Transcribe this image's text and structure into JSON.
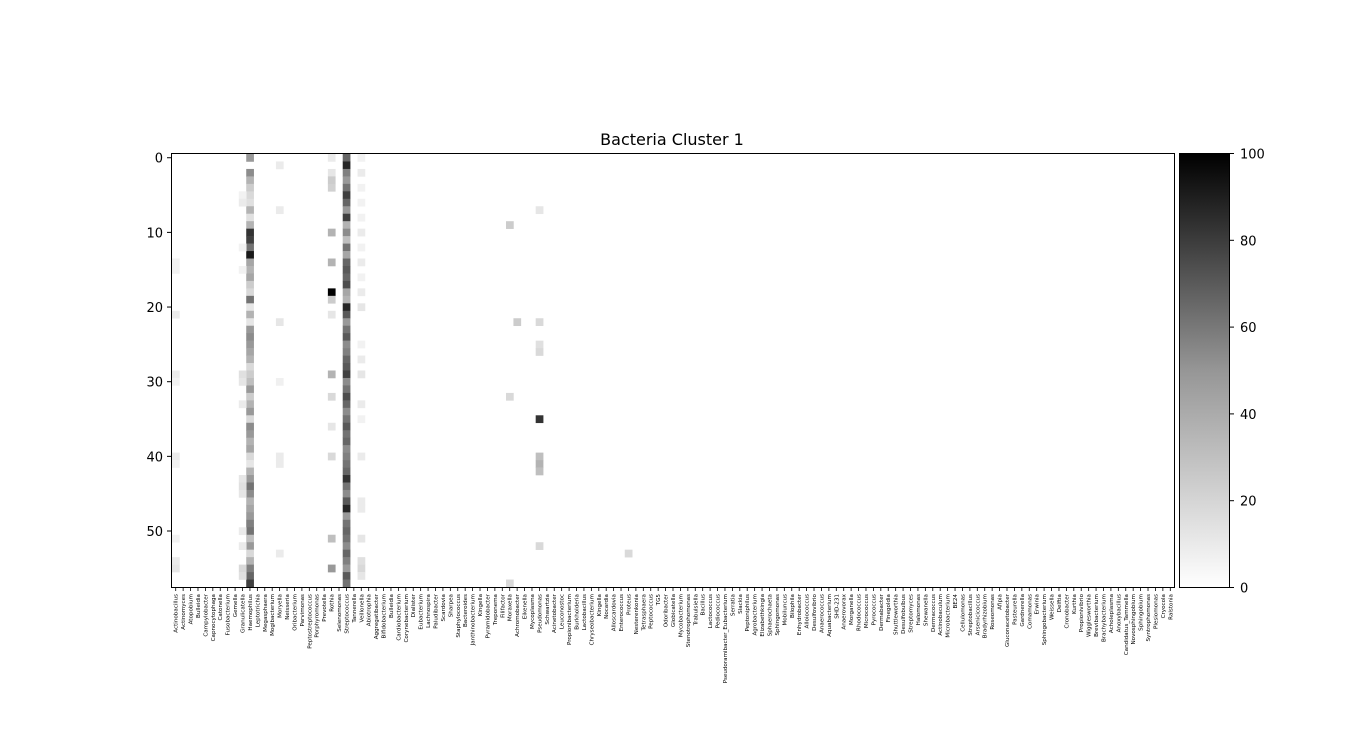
{
  "chart_data": {
    "type": "heatmap",
    "title": "Bacteria Cluster 1",
    "xlabel": "",
    "ylabel": "",
    "n_rows": 58,
    "y_ticks": [
      0,
      10,
      20,
      30,
      40,
      50
    ],
    "colorbar": {
      "min": 0,
      "max": 100,
      "ticks": [
        0,
        20,
        40,
        60,
        80,
        100
      ],
      "cmap": "Greys"
    },
    "categories": [
      "Actinobacillus",
      "Actinomyces",
      "Atopobium",
      "Bulleidia",
      "Campylobacter",
      "Capnocytophaga",
      "Catonella",
      "Fusobacterium",
      "Gemella",
      "Granulicatella",
      "Haemophilus",
      "Leptotrichia",
      "Megasphaera",
      "Mogibacterium",
      "Moryella",
      "Neisseria",
      "Oribacterium",
      "Parvimonas",
      "Peptostreptococcus",
      "Porphyromonas",
      "Prevotella",
      "Rothia",
      "Selenomonas",
      "Streptococcus",
      "Tannerella",
      "Veillonella",
      "Abiotrophia",
      "Aggregatibacter",
      "Bifidobacterium",
      "Bulleidia",
      "Cardiobacterium",
      "Corynebacterium",
      "Dialister",
      "Eubacterium",
      "Lachnospira",
      "Paludibacter",
      "Scardovia",
      "Sharpea",
      "Staphylococcus",
      "Bacteroides",
      "Janthinobacterium",
      "Kingella",
      "Pyramidobacter",
      "Treponema",
      "Filifactor",
      "Moraxella",
      "Achromobacter",
      "Eikenella",
      "Mycoplasma",
      "Pseudomonas",
      "Schwartzia",
      "Acinetobacter",
      "Leuconostoc",
      "Propionibacterium",
      "Burkholderia",
      "Lactobacillus",
      "Chryseobacterium",
      "Kingella",
      "Nocardia",
      "Alloscardovia",
      "Enterococcus",
      "Proteus",
      "Nesterenkonia",
      "Tetrasphaera",
      "Peptococcus",
      "TG5",
      "Odoribacter",
      "Globicatella",
      "Mycobacterium",
      "Stenotrophomonas",
      "Trabulsiella",
      "Bacillus",
      "Lactococcus",
      "Pediococcus",
      "Pseudoramibacter_Eubacterium",
      "Serratia",
      "Slackia",
      "Peptoniphilus",
      "Agrobacterium",
      "Elizabethkingia",
      "Sphaerochaeta",
      "Sphingomonas",
      "Mobiluncus",
      "Bilophila",
      "Enhydrobacter",
      "Alloiococcus",
      "Desulfovibrio",
      "Anaerococcus",
      "Aquabacterium",
      "SHD-231",
      "Anaerovorax",
      "Morganella",
      "Rhodococcus",
      "Micrococcus",
      "Pyrococcus",
      "Dermabacter",
      "Finegoldia",
      "Shuttleworthia",
      "Desulfobulbus",
      "Streptomyces",
      "Halomonas",
      "Shewanella",
      "Dermacoccus",
      "Actinobaculum",
      "Microbacterium",
      "BE24",
      "Cellulomonas",
      "Streptobacillus",
      "Arsenicicoccus",
      "Bradyrhizobium",
      "Roseomonas",
      "Afipia",
      "Gluconacetobacter",
      "Pasteurella",
      "Gardnerella",
      "Comamonas",
      "Erwinia",
      "Sphingobacterium",
      "Weissella",
      "Delftia",
      "Cronobacter",
      "Kurthia",
      "Propionivibrio",
      "Wigglesworthia",
      "Brevibacterium",
      "Brachybacterium",
      "Acholeplasma",
      "Anoxybacillus",
      "Candidatus_Tammella",
      "Novosphingobium",
      "Sphingobium",
      "Syntrophomonas",
      "Plesiomonas",
      "Cryocola",
      "Ralstonia"
    ],
    "highlight_cells": [
      {
        "category_index": 10,
        "values_by_row": [
          [
            0,
            40
          ],
          [
            2,
            45
          ],
          [
            3,
            30
          ],
          [
            4,
            20
          ],
          [
            5,
            15
          ],
          [
            6,
            12
          ],
          [
            7,
            30
          ],
          [
            8,
            12
          ],
          [
            9,
            30
          ],
          [
            10,
            80
          ],
          [
            11,
            75
          ],
          [
            12,
            55
          ],
          [
            13,
            90
          ],
          [
            14,
            35
          ],
          [
            15,
            30
          ],
          [
            16,
            35
          ],
          [
            17,
            20
          ],
          [
            18,
            15
          ],
          [
            19,
            55
          ],
          [
            20,
            10
          ],
          [
            21,
            30
          ],
          [
            22,
            10
          ],
          [
            23,
            40
          ],
          [
            24,
            45
          ],
          [
            25,
            40
          ],
          [
            26,
            35
          ],
          [
            27,
            30
          ],
          [
            28,
            15
          ],
          [
            29,
            20
          ],
          [
            30,
            25
          ],
          [
            31,
            40
          ],
          [
            32,
            20
          ],
          [
            33,
            30
          ],
          [
            34,
            40
          ],
          [
            35,
            15
          ],
          [
            36,
            45
          ],
          [
            37,
            40
          ],
          [
            38,
            30
          ],
          [
            39,
            35
          ],
          [
            40,
            15
          ],
          [
            41,
            10
          ],
          [
            42,
            30
          ],
          [
            43,
            40
          ],
          [
            44,
            55
          ],
          [
            45,
            45
          ],
          [
            46,
            30
          ],
          [
            47,
            35
          ],
          [
            48,
            40
          ],
          [
            49,
            50
          ],
          [
            50,
            55
          ],
          [
            51,
            25
          ],
          [
            52,
            40
          ],
          [
            53,
            15
          ],
          [
            54,
            30
          ],
          [
            55,
            50
          ],
          [
            56,
            60
          ],
          [
            57,
            75
          ]
        ]
      },
      {
        "category_index": 21,
        "values_by_row": [
          [
            0,
            8
          ],
          [
            2,
            10
          ],
          [
            3,
            20
          ],
          [
            4,
            18
          ],
          [
            10,
            30
          ],
          [
            14,
            30
          ],
          [
            18,
            100
          ],
          [
            19,
            20
          ],
          [
            21,
            10
          ],
          [
            29,
            30
          ],
          [
            32,
            15
          ],
          [
            36,
            10
          ],
          [
            40,
            15
          ],
          [
            51,
            25
          ],
          [
            55,
            40
          ]
        ]
      },
      {
        "category_index": 23,
        "values_by_row": [
          [
            0,
            60
          ],
          [
            1,
            85
          ],
          [
            2,
            50
          ],
          [
            3,
            40
          ],
          [
            4,
            55
          ],
          [
            5,
            75
          ],
          [
            6,
            60
          ],
          [
            7,
            40
          ],
          [
            8,
            75
          ],
          [
            9,
            30
          ],
          [
            10,
            45
          ],
          [
            11,
            25
          ],
          [
            12,
            55
          ],
          [
            13,
            35
          ],
          [
            14,
            60
          ],
          [
            15,
            65
          ],
          [
            16,
            60
          ],
          [
            17,
            70
          ],
          [
            18,
            35
          ],
          [
            19,
            30
          ],
          [
            20,
            85
          ],
          [
            21,
            65
          ],
          [
            22,
            40
          ],
          [
            23,
            55
          ],
          [
            24,
            65
          ],
          [
            25,
            45
          ],
          [
            26,
            50
          ],
          [
            27,
            60
          ],
          [
            28,
            65
          ],
          [
            29,
            75
          ],
          [
            30,
            45
          ],
          [
            31,
            55
          ],
          [
            32,
            70
          ],
          [
            33,
            60
          ],
          [
            34,
            45
          ],
          [
            35,
            55
          ],
          [
            36,
            65
          ],
          [
            37,
            55
          ],
          [
            38,
            60
          ],
          [
            39,
            45
          ],
          [
            40,
            50
          ],
          [
            41,
            55
          ],
          [
            42,
            60
          ],
          [
            43,
            80
          ],
          [
            44,
            55
          ],
          [
            45,
            45
          ],
          [
            46,
            65
          ],
          [
            47,
            85
          ],
          [
            48,
            40
          ],
          [
            49,
            55
          ],
          [
            50,
            60
          ],
          [
            51,
            55
          ],
          [
            52,
            45
          ],
          [
            53,
            60
          ],
          [
            54,
            50
          ],
          [
            55,
            40
          ],
          [
            56,
            65
          ],
          [
            57,
            55
          ]
        ]
      },
      {
        "category_index": 45,
        "values_by_row": [
          [
            9,
            20
          ],
          [
            32,
            15
          ],
          [
            57,
            15
          ]
        ]
      },
      {
        "category_index": 46,
        "values_by_row": [
          [
            22,
            20
          ]
        ]
      },
      {
        "category_index": 49,
        "values_by_row": [
          [
            7,
            10
          ],
          [
            22,
            15
          ],
          [
            25,
            12
          ],
          [
            26,
            15
          ],
          [
            35,
            80
          ],
          [
            40,
            25
          ],
          [
            41,
            30
          ],
          [
            42,
            25
          ],
          [
            52,
            15
          ]
        ]
      },
      {
        "category_index": 61,
        "values_by_row": [
          [
            53,
            15
          ]
        ]
      },
      {
        "category_index": 0,
        "values_by_row": [
          [
            14,
            5
          ],
          [
            15,
            5
          ],
          [
            21,
            8
          ],
          [
            29,
            8
          ],
          [
            30,
            5
          ],
          [
            40,
            8
          ],
          [
            41,
            5
          ],
          [
            51,
            5
          ],
          [
            54,
            8
          ],
          [
            55,
            10
          ]
        ]
      },
      {
        "category_index": 9,
        "values_by_row": [
          [
            5,
            5
          ],
          [
            6,
            8
          ],
          [
            12,
            5
          ],
          [
            15,
            5
          ],
          [
            29,
            12
          ],
          [
            30,
            10
          ],
          [
            33,
            8
          ],
          [
            43,
            10
          ],
          [
            44,
            12
          ],
          [
            45,
            10
          ],
          [
            50,
            8
          ],
          [
            52,
            8
          ],
          [
            55,
            15
          ],
          [
            56,
            12
          ]
        ]
      },
      {
        "category_index": 14,
        "values_by_row": [
          [
            1,
            8
          ],
          [
            7,
            8
          ],
          [
            22,
            10
          ],
          [
            30,
            6
          ],
          [
            40,
            8
          ],
          [
            41,
            8
          ],
          [
            53,
            8
          ]
        ]
      },
      {
        "category_index": 25,
        "values_by_row": [
          [
            0,
            5
          ],
          [
            2,
            8
          ],
          [
            4,
            5
          ],
          [
            6,
            5
          ],
          [
            8,
            5
          ],
          [
            10,
            8
          ],
          [
            12,
            5
          ],
          [
            14,
            8
          ],
          [
            16,
            5
          ],
          [
            18,
            8
          ],
          [
            20,
            10
          ],
          [
            25,
            5
          ],
          [
            27,
            8
          ],
          [
            29,
            10
          ],
          [
            33,
            8
          ],
          [
            35,
            5
          ],
          [
            40,
            8
          ],
          [
            46,
            8
          ],
          [
            47,
            8
          ],
          [
            51,
            10
          ],
          [
            54,
            12
          ],
          [
            55,
            15
          ],
          [
            56,
            10
          ]
        ]
      }
    ]
  },
  "texts": {
    "title": "Bacteria Cluster 1"
  }
}
